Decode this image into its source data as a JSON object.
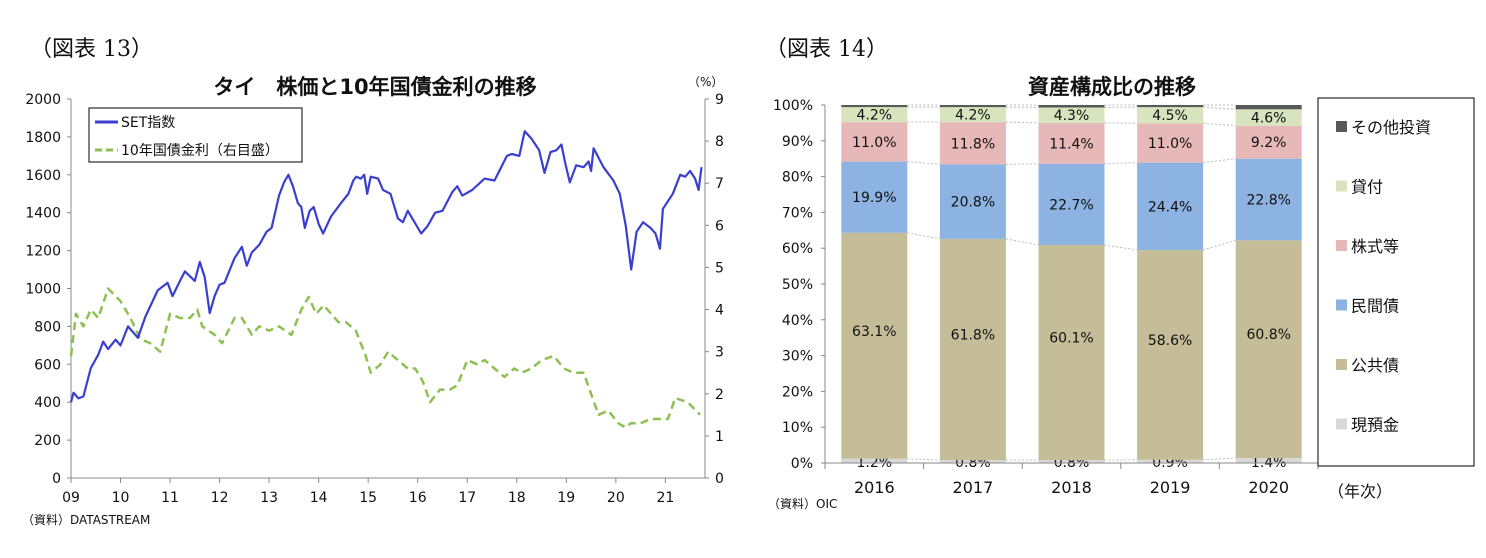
{
  "chart_data": [
    {
      "type": "line",
      "figure_label": "（図表 13）",
      "title": "タイ　株価と10年国債金利の推移",
      "right_unit": "（%）",
      "source": "（資料）DATASTREAM",
      "xlim": [
        2009,
        2021.8
      ],
      "x_tick_labels": [
        "09",
        "10",
        "11",
        "12",
        "13",
        "14",
        "15",
        "16",
        "17",
        "18",
        "19",
        "20",
        "21"
      ],
      "ylim_left": [
        0,
        2000
      ],
      "y_left_ticks": [
        "0",
        "200",
        "400",
        "600",
        "800",
        "1000",
        "1200",
        "1400",
        "1600",
        "1800",
        "2000"
      ],
      "ylim_right": [
        0,
        9
      ],
      "y_right_ticks": [
        "0",
        "1",
        "2",
        "3",
        "4",
        "5",
        "6",
        "7",
        "8",
        "9"
      ],
      "legend_position": "top-left",
      "series": [
        {
          "name": "SET指数",
          "axis": "left",
          "color": "#3a3fcf",
          "style": "solid",
          "points": [
            [
              2009.0,
              400
            ],
            [
              2009.05,
              450
            ],
            [
              2009.15,
              420
            ],
            [
              2009.25,
              430
            ],
            [
              2009.4,
              580
            ],
            [
              2009.55,
              650
            ],
            [
              2009.65,
              720
            ],
            [
              2009.75,
              680
            ],
            [
              2009.9,
              730
            ],
            [
              2010.0,
              700
            ],
            [
              2010.15,
              800
            ],
            [
              2010.35,
              740
            ],
            [
              2010.5,
              850
            ],
            [
              2010.75,
              990
            ],
            [
              2010.95,
              1030
            ],
            [
              2011.05,
              960
            ],
            [
              2011.2,
              1040
            ],
            [
              2011.3,
              1090
            ],
            [
              2011.5,
              1040
            ],
            [
              2011.6,
              1140
            ],
            [
              2011.7,
              1060
            ],
            [
              2011.8,
              870
            ],
            [
              2011.9,
              960
            ],
            [
              2012.0,
              1020
            ],
            [
              2012.1,
              1030
            ],
            [
              2012.3,
              1160
            ],
            [
              2012.45,
              1220
            ],
            [
              2012.55,
              1120
            ],
            [
              2012.65,
              1190
            ],
            [
              2012.8,
              1230
            ],
            [
              2012.95,
              1300
            ],
            [
              2013.05,
              1320
            ],
            [
              2013.2,
              1490
            ],
            [
              2013.3,
              1560
            ],
            [
              2013.39,
              1600
            ],
            [
              2013.48,
              1540
            ],
            [
              2013.58,
              1450
            ],
            [
              2013.65,
              1430
            ],
            [
              2013.72,
              1320
            ],
            [
              2013.82,
              1410
            ],
            [
              2013.9,
              1430
            ],
            [
              2014.0,
              1340
            ],
            [
              2014.09,
              1290
            ],
            [
              2014.25,
              1380
            ],
            [
              2014.45,
              1450
            ],
            [
              2014.6,
              1500
            ],
            [
              2014.7,
              1570
            ],
            [
              2014.76,
              1590
            ],
            [
              2014.85,
              1580
            ],
            [
              2014.92,
              1600
            ],
            [
              2014.98,
              1500
            ],
            [
              2015.05,
              1590
            ],
            [
              2015.2,
              1580
            ],
            [
              2015.3,
              1520
            ],
            [
              2015.45,
              1500
            ],
            [
              2015.6,
              1370
            ],
            [
              2015.7,
              1350
            ],
            [
              2015.8,
              1410
            ],
            [
              2016.07,
              1290
            ],
            [
              2016.2,
              1330
            ],
            [
              2016.35,
              1400
            ],
            [
              2016.5,
              1410
            ],
            [
              2016.7,
              1510
            ],
            [
              2016.8,
              1540
            ],
            [
              2016.9,
              1490
            ],
            [
              2017.1,
              1520
            ],
            [
              2017.35,
              1580
            ],
            [
              2017.55,
              1570
            ],
            [
              2017.8,
              1700
            ],
            [
              2017.9,
              1710
            ],
            [
              2018.05,
              1700
            ],
            [
              2018.16,
              1830
            ],
            [
              2018.3,
              1790
            ],
            [
              2018.45,
              1730
            ],
            [
              2018.56,
              1610
            ],
            [
              2018.68,
              1720
            ],
            [
              2018.8,
              1730
            ],
            [
              2018.9,
              1760
            ],
            [
              2018.98,
              1660
            ],
            [
              2019.07,
              1560
            ],
            [
              2019.2,
              1650
            ],
            [
              2019.35,
              1640
            ],
            [
              2019.45,
              1670
            ],
            [
              2019.5,
              1620
            ],
            [
              2019.55,
              1740
            ],
            [
              2019.75,
              1640
            ],
            [
              2019.95,
              1570
            ],
            [
              2020.08,
              1500
            ],
            [
              2020.2,
              1330
            ],
            [
              2020.31,
              1100
            ],
            [
              2020.42,
              1300
            ],
            [
              2020.55,
              1350
            ],
            [
              2020.7,
              1320
            ],
            [
              2020.8,
              1290
            ],
            [
              2020.89,
              1210
            ],
            [
              2020.95,
              1420
            ],
            [
              2021.15,
              1500
            ],
            [
              2021.3,
              1600
            ],
            [
              2021.4,
              1590
            ],
            [
              2021.5,
              1620
            ],
            [
              2021.6,
              1580
            ],
            [
              2021.67,
              1520
            ],
            [
              2021.73,
              1640
            ]
          ]
        },
        {
          "name": "10年国債金利（右目盛）",
          "axis": "right",
          "color": "#8cc152",
          "style": "dashed",
          "points": [
            [
              2009.0,
              2.9
            ],
            [
              2009.1,
              3.9
            ],
            [
              2009.25,
              3.6
            ],
            [
              2009.4,
              4.0
            ],
            [
              2009.55,
              3.8
            ],
            [
              2009.75,
              4.5
            ],
            [
              2010.0,
              4.2
            ],
            [
              2010.2,
              3.8
            ],
            [
              2010.4,
              3.3
            ],
            [
              2010.6,
              3.2
            ],
            [
              2010.8,
              3.0
            ],
            [
              2011.0,
              3.9
            ],
            [
              2011.2,
              3.8
            ],
            [
              2011.4,
              3.8
            ],
            [
              2011.55,
              4.0
            ],
            [
              2011.65,
              3.6
            ],
            [
              2011.9,
              3.4
            ],
            [
              2012.05,
              3.2
            ],
            [
              2012.3,
              3.8
            ],
            [
              2012.45,
              3.8
            ],
            [
              2012.65,
              3.4
            ],
            [
              2012.8,
              3.6
            ],
            [
              2013.0,
              3.5
            ],
            [
              2013.2,
              3.6
            ],
            [
              2013.45,
              3.4
            ],
            [
              2013.65,
              4.0
            ],
            [
              2013.8,
              4.3
            ],
            [
              2013.95,
              3.9
            ],
            [
              2014.1,
              4.1
            ],
            [
              2014.4,
              3.7
            ],
            [
              2014.55,
              3.7
            ],
            [
              2014.75,
              3.5
            ],
            [
              2014.95,
              2.9
            ],
            [
              2015.05,
              2.5
            ],
            [
              2015.25,
              2.7
            ],
            [
              2015.4,
              3.0
            ],
            [
              2015.6,
              2.8
            ],
            [
              2015.8,
              2.6
            ],
            [
              2015.95,
              2.6
            ],
            [
              2016.1,
              2.3
            ],
            [
              2016.25,
              1.8
            ],
            [
              2016.45,
              2.1
            ],
            [
              2016.65,
              2.1
            ],
            [
              2016.8,
              2.2
            ],
            [
              2017.0,
              2.8
            ],
            [
              2017.2,
              2.7
            ],
            [
              2017.35,
              2.8
            ],
            [
              2017.55,
              2.6
            ],
            [
              2017.75,
              2.4
            ],
            [
              2017.95,
              2.6
            ],
            [
              2018.1,
              2.5
            ],
            [
              2018.3,
              2.6
            ],
            [
              2018.5,
              2.8
            ],
            [
              2018.75,
              2.9
            ],
            [
              2018.95,
              2.6
            ],
            [
              2019.15,
              2.5
            ],
            [
              2019.35,
              2.5
            ],
            [
              2019.5,
              2.0
            ],
            [
              2019.65,
              1.5
            ],
            [
              2019.85,
              1.6
            ],
            [
              2020.05,
              1.3
            ],
            [
              2020.2,
              1.2
            ],
            [
              2020.3,
              1.3
            ],
            [
              2020.5,
              1.3
            ],
            [
              2020.7,
              1.4
            ],
            [
              2020.9,
              1.4
            ],
            [
              2021.05,
              1.4
            ],
            [
              2021.2,
              1.9
            ],
            [
              2021.45,
              1.8
            ],
            [
              2021.7,
              1.5
            ]
          ]
        }
      ]
    },
    {
      "type": "bar",
      "stacked": true,
      "figure_label": "（図表 14）",
      "title": "資産構成比の推移",
      "source": "（資料）OIC",
      "x_unit": "（年次）",
      "categories": [
        "2016",
        "2017",
        "2018",
        "2019",
        "2020"
      ],
      "ylim": [
        0,
        100
      ],
      "y_ticks": [
        "0%",
        "10%",
        "20%",
        "30%",
        "40%",
        "50%",
        "60%",
        "70%",
        "80%",
        "90%",
        "100%"
      ],
      "legend_position": "right",
      "series": [
        {
          "name": "現預金",
          "color": "#d9d9d9",
          "values": [
            1.2,
            0.8,
            0.8,
            0.9,
            1.4
          ],
          "labels": [
            "1.2%",
            "0.8%",
            "0.8%",
            "0.9%",
            "1.4%"
          ]
        },
        {
          "name": "公共債",
          "color": "#c4bd97",
          "values": [
            63.1,
            61.8,
            60.1,
            58.6,
            60.8
          ],
          "labels": [
            "63.1%",
            "61.8%",
            "60.1%",
            "58.6%",
            "60.8%"
          ]
        },
        {
          "name": "民間債",
          "color": "#8db3e2",
          "values": [
            19.9,
            20.8,
            22.7,
            24.4,
            22.8
          ],
          "labels": [
            "19.9%",
            "20.8%",
            "22.7%",
            "24.4%",
            "22.8%"
          ]
        },
        {
          "name": "株式等",
          "color": "#e6b9b8",
          "values": [
            11.0,
            11.8,
            11.4,
            11.0,
            9.2
          ],
          "labels": [
            "11.0%",
            "11.8%",
            "11.4%",
            "11.0%",
            "9.2%"
          ]
        },
        {
          "name": "貸付",
          "color": "#d7e4bd",
          "values": [
            4.2,
            4.2,
            4.3,
            4.5,
            4.6
          ],
          "labels": [
            "4.2%",
            "4.2%",
            "4.3%",
            "4.5%",
            "4.6%"
          ]
        },
        {
          "name": "その他投資",
          "color": "#595959",
          "values": [
            0.6,
            0.6,
            0.7,
            0.6,
            1.2
          ],
          "labels": []
        }
      ]
    }
  ]
}
